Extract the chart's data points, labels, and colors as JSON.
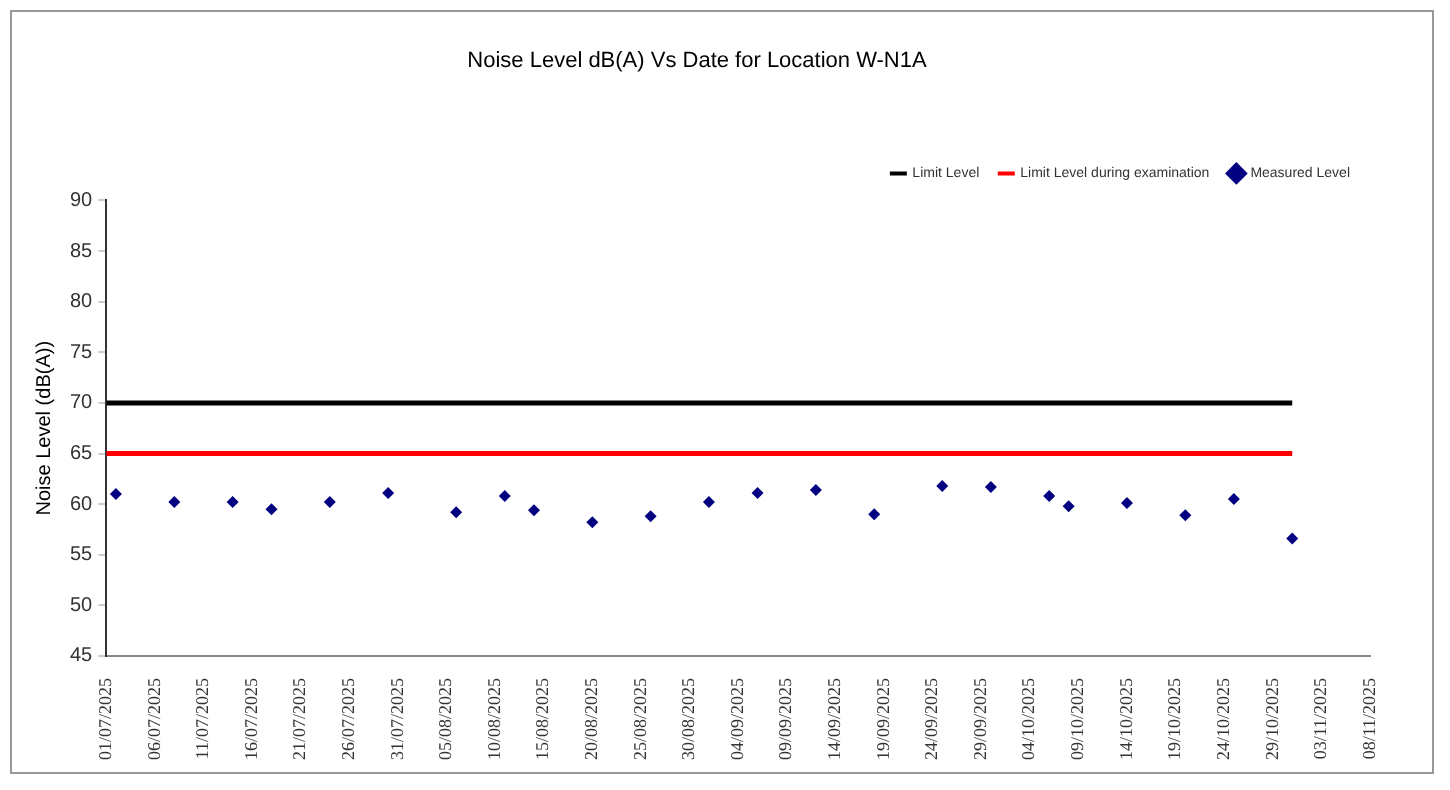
{
  "chart_data": {
    "type": "scatter",
    "title": "Noise Level dB(A) Vs Date for Location W-N1A",
    "ylabel": "Noise Level (dB(A))",
    "x": [
      "2025-07-02",
      "2025-07-08",
      "2025-07-14",
      "2025-07-18",
      "2025-07-24",
      "2025-07-30",
      "2025-08-06",
      "2025-08-11",
      "2025-08-14",
      "2025-08-20",
      "2025-08-26",
      "2025-09-01",
      "2025-09-06",
      "2025-09-12",
      "2025-09-18",
      "2025-09-25",
      "2025-09-30",
      "2025-10-06",
      "2025-10-08",
      "2025-10-14",
      "2025-10-20",
      "2025-10-25",
      "2025-10-31"
    ],
    "series": [
      {
        "name": "Limit Level",
        "type": "line",
        "color": "#000000",
        "x": [
          "2025-07-01",
          "2025-10-31"
        ],
        "values": [
          70,
          70
        ],
        "marker": "none"
      },
      {
        "name": "Limit Level during examination",
        "type": "line",
        "color": "#ff0000",
        "x": [
          "2025-07-01",
          "2025-10-31"
        ],
        "values": [
          65,
          65
        ],
        "marker": "none"
      },
      {
        "name": "Measured Level",
        "color": "#000080",
        "marker": "diamond",
        "values": [
          61.0,
          60.2,
          60.2,
          59.5,
          60.2,
          61.1,
          59.2,
          60.8,
          59.4,
          58.2,
          58.8,
          60.2,
          61.1,
          61.4,
          59.0,
          61.8,
          61.7,
          60.8,
          59.8,
          60.1,
          58.9,
          60.5,
          56.6
        ]
      }
    ],
    "xlim": [
      "2025-07-01",
      "2025-11-08"
    ],
    "xticks": [
      {
        "value": "2025-07-01",
        "label": "01/07/2025"
      },
      {
        "value": "2025-07-06",
        "label": "06/07/2025"
      },
      {
        "value": "2025-07-11",
        "label": "11/07/2025"
      },
      {
        "value": "2025-07-16",
        "label": "16/07/2025"
      },
      {
        "value": "2025-07-21",
        "label": "21/07/2025"
      },
      {
        "value": "2025-07-26",
        "label": "26/07/2025"
      },
      {
        "value": "2025-07-31",
        "label": "31/07/2025"
      },
      {
        "value": "2025-08-05",
        "label": "05/08/2025"
      },
      {
        "value": "2025-08-10",
        "label": "10/08/2025"
      },
      {
        "value": "2025-08-15",
        "label": "15/08/2025"
      },
      {
        "value": "2025-08-20",
        "label": "20/08/2025"
      },
      {
        "value": "2025-08-25",
        "label": "25/08/2025"
      },
      {
        "value": "2025-08-30",
        "label": "30/08/2025"
      },
      {
        "value": "2025-09-04",
        "label": "04/09/2025"
      },
      {
        "value": "2025-09-09",
        "label": "09/09/2025"
      },
      {
        "value": "2025-09-14",
        "label": "14/09/2025"
      },
      {
        "value": "2025-09-19",
        "label": "19/09/2025"
      },
      {
        "value": "2025-09-24",
        "label": "24/09/2025"
      },
      {
        "value": "2025-09-29",
        "label": "29/09/2025"
      },
      {
        "value": "2025-10-04",
        "label": "04/10/2025"
      },
      {
        "value": "2025-10-09",
        "label": "09/10/2025"
      },
      {
        "value": "2025-10-14",
        "label": "14/10/2025"
      },
      {
        "value": "2025-10-19",
        "label": "19/10/2025"
      },
      {
        "value": "2025-10-24",
        "label": "24/10/2025"
      },
      {
        "value": "2025-10-29",
        "label": "29/10/2025"
      },
      {
        "value": "2025-11-03",
        "label": "03/11/2025"
      },
      {
        "value": "2025-11-08",
        "label": "08/11/2025"
      }
    ],
    "ylim": [
      45,
      90
    ],
    "yticks": [
      45,
      50,
      55,
      60,
      65,
      70,
      75,
      80,
      85,
      90
    ],
    "grid": false,
    "legend": "top right"
  }
}
